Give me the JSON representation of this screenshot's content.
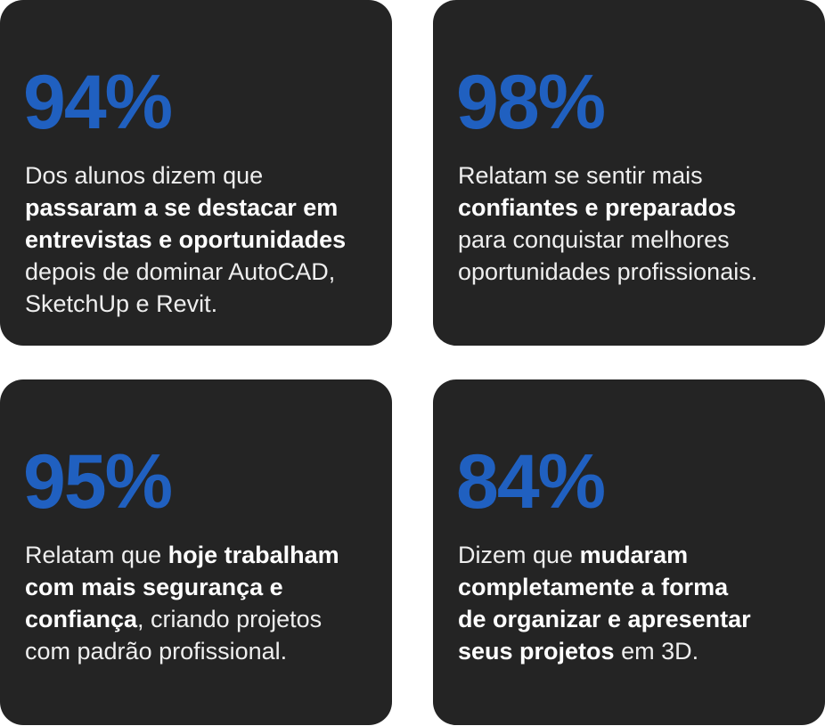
{
  "cards": [
    {
      "stat": "94%",
      "lines": [
        [
          {
            "text": "Dos alunos dizem que",
            "bold": false
          }
        ],
        [
          {
            "text": "passaram a se destacar em",
            "bold": true
          }
        ],
        [
          {
            "text": "entrevistas e oportunidades",
            "bold": true
          }
        ],
        [
          {
            "text": "depois de dominar AutoCAD,",
            "bold": false
          }
        ],
        [
          {
            "text": "SketchUp e Revit.",
            "bold": false
          }
        ]
      ]
    },
    {
      "stat": "98%",
      "lines": [
        [
          {
            "text": "Relatam se sentir mais",
            "bold": false
          }
        ],
        [
          {
            "text": "confiantes e preparados",
            "bold": true
          }
        ],
        [
          {
            "text": "para conquistar melhores",
            "bold": false
          }
        ],
        [
          {
            "text": "oportunidades profissionais.",
            "bold": false
          }
        ]
      ]
    },
    {
      "stat": "95%",
      "lines": [
        [
          {
            "text": "Relatam que ",
            "bold": false
          },
          {
            "text": "hoje trabalham",
            "bold": true
          }
        ],
        [
          {
            "text": "com mais segurança e",
            "bold": true
          }
        ],
        [
          {
            "text": "confiança",
            "bold": true
          },
          {
            "text": ", criando projetos",
            "bold": false
          }
        ],
        [
          {
            "text": "com padrão profissional.",
            "bold": false
          }
        ]
      ]
    },
    {
      "stat": "84%",
      "lines": [
        [
          {
            "text": "Dizem que ",
            "bold": false
          },
          {
            "text": "mudaram",
            "bold": true
          }
        ],
        [
          {
            "text": "completamente a forma",
            "bold": true
          }
        ],
        [
          {
            "text": "de organizar e apresentar",
            "bold": true
          }
        ],
        [
          {
            "text": "seus projetos",
            "bold": true
          },
          {
            "text": " em 3D.",
            "bold": false
          }
        ]
      ]
    }
  ]
}
